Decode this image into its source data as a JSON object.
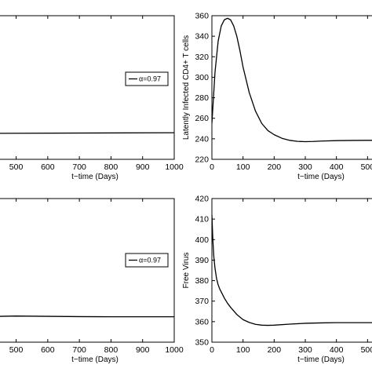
{
  "chart_data": [
    {
      "type": "line",
      "panel": "top-left",
      "xlabel": "t−time (Days)",
      "ylabel": "",
      "xlim": [
        300,
        1000
      ],
      "ylim": [
        0,
        1
      ],
      "x_ticks": [
        400,
        500,
        600,
        700,
        800,
        900,
        1000
      ],
      "y_ticks": [],
      "grid": false,
      "legend": {
        "placement": "center-right",
        "entries": [
          "α=0.97"
        ]
      },
      "series": [
        {
          "name": "α=0.97",
          "x": [
            300,
            1000
          ],
          "y": [
            0.18,
            0.185
          ]
        }
      ]
    },
    {
      "type": "line",
      "panel": "top-right",
      "xlabel": "t−time (Days)",
      "ylabel": "Latently Infected CD4+ T cells",
      "xlim": [
        0,
        600
      ],
      "ylim": [
        220,
        360
      ],
      "x_ticks": [
        0,
        100,
        200,
        300,
        400,
        500
      ],
      "y_ticks": [
        220,
        240,
        260,
        280,
        300,
        320,
        340,
        360
      ],
      "grid": false,
      "legend": null,
      "series": [
        {
          "x": [
            0,
            10,
            20,
            30,
            40,
            50,
            60,
            70,
            80,
            90,
            100,
            120,
            140,
            160,
            180,
            200,
            225,
            250,
            275,
            300,
            325,
            350,
            400,
            450,
            500,
            550,
            600
          ],
          "y": [
            255,
            305,
            335,
            350,
            356,
            357.5,
            356,
            350,
            340,
            326,
            310,
            285,
            267,
            255,
            248,
            244,
            240.5,
            238.5,
            237.5,
            237.2,
            237.4,
            237.8,
            238.2,
            238.4,
            238.5,
            238.5,
            238.5
          ]
        }
      ]
    },
    {
      "type": "line",
      "panel": "bottom-left",
      "xlabel": "t−time (Days)",
      "ylabel": "",
      "xlim": [
        300,
        1000
      ],
      "ylim": [
        0,
        1
      ],
      "x_ticks": [
        400,
        500,
        600,
        700,
        800,
        900,
        1000
      ],
      "y_ticks": [],
      "grid": false,
      "legend": {
        "placement": "center-right",
        "entries": [
          "α=0.97"
        ]
      },
      "series": [
        {
          "name": "α=0.97",
          "x": [
            300,
            400,
            500,
            600,
            700,
            800,
            900,
            1000
          ],
          "y": [
            0.17,
            0.178,
            0.182,
            0.18,
            0.178,
            0.177,
            0.177,
            0.177
          ]
        }
      ]
    },
    {
      "type": "line",
      "panel": "bottom-right",
      "xlabel": "t−time (Days)",
      "ylabel": "Free Virus",
      "xlim": [
        0,
        600
      ],
      "ylim": [
        350,
        420
      ],
      "x_ticks": [
        0,
        100,
        200,
        300,
        400,
        500
      ],
      "y_ticks": [
        350,
        360,
        370,
        380,
        390,
        400,
        410,
        420
      ],
      "grid": false,
      "legend": null,
      "series": [
        {
          "x": [
            0,
            3,
            6,
            10,
            15,
            20,
            25,
            30,
            40,
            50,
            60,
            80,
            100,
            120,
            140,
            160,
            180,
            200,
            250,
            300,
            350,
            400,
            450,
            500,
            550,
            600
          ],
          "y": [
            412,
            400,
            392,
            386,
            381,
            378,
            376,
            374.5,
            371.5,
            369,
            367,
            363.5,
            361,
            359.6,
            358.7,
            358.3,
            358.2,
            358.3,
            358.8,
            359.2,
            359.4,
            359.5,
            359.5,
            359.5,
            359.5,
            359.5
          ]
        }
      ]
    }
  ]
}
